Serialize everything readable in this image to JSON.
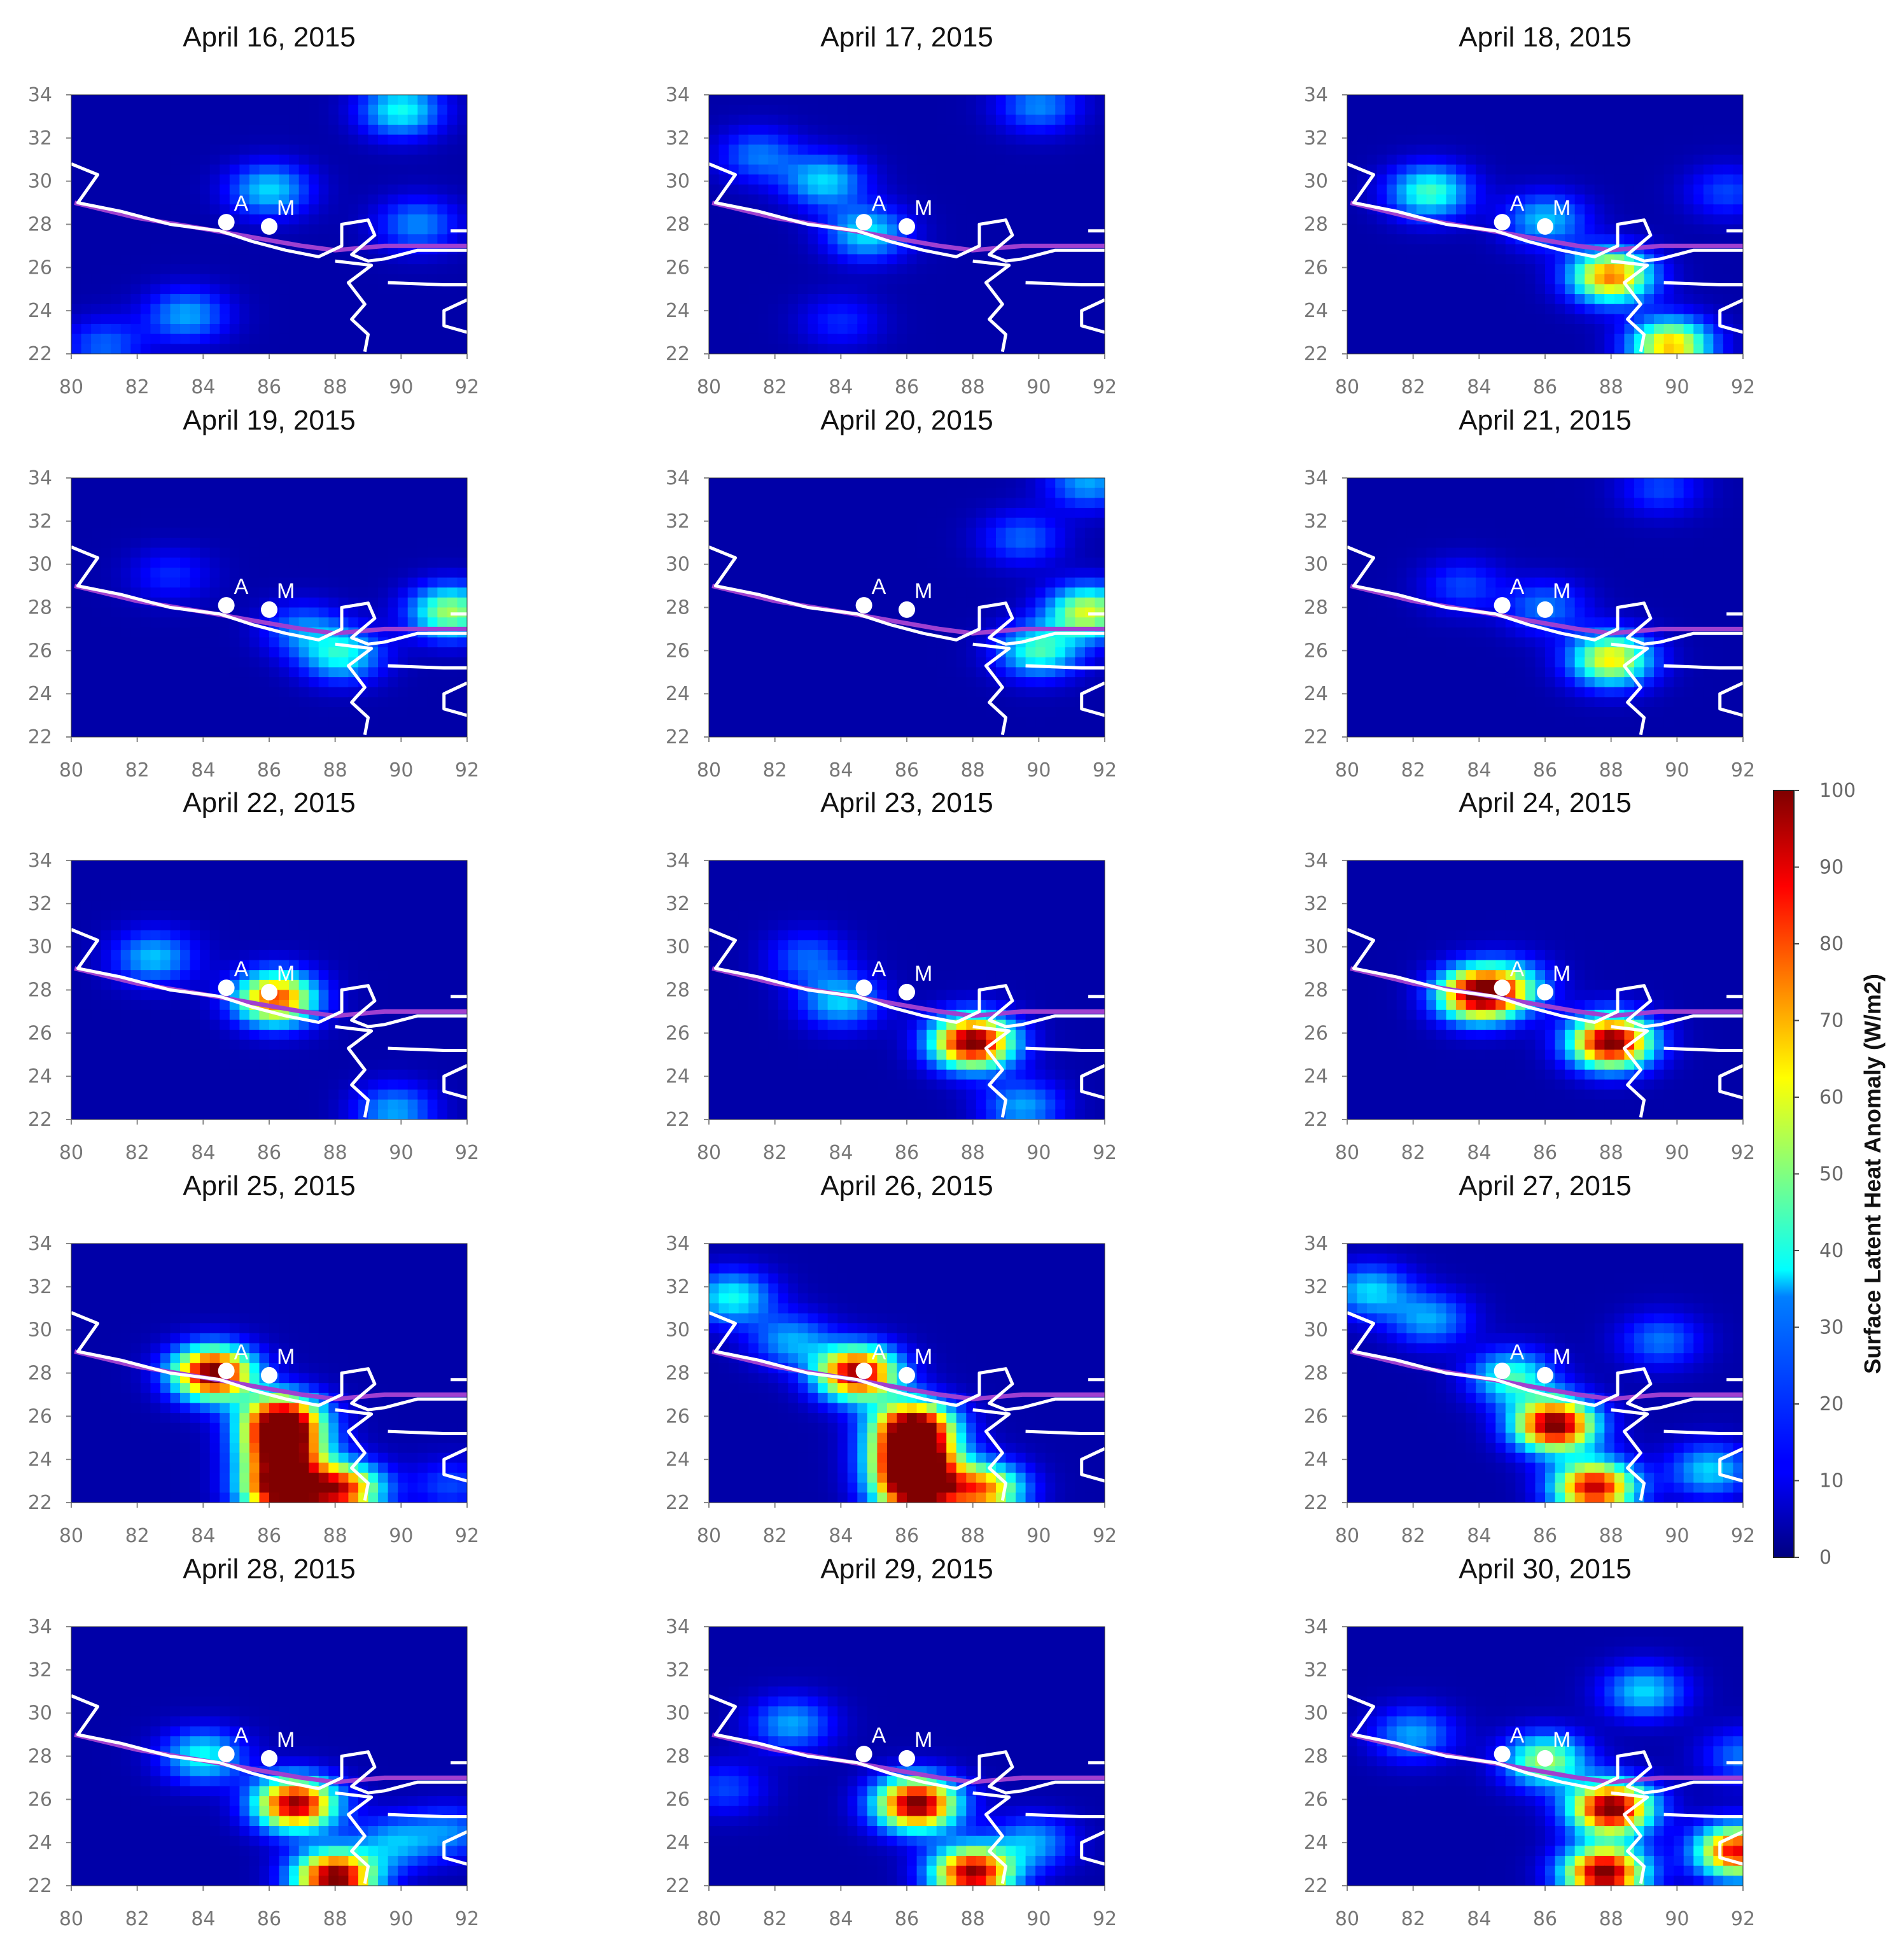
{
  "chart_data": {
    "type": "heatmap",
    "panel_titles": [
      "April 16, 2015",
      "April 17, 2015",
      "April 18, 2015",
      "April 19, 2015",
      "April 20, 2015",
      "April 21, 2015",
      "April 22, 2015",
      "April 23, 2015",
      "April 24, 2015",
      "April 25, 2015",
      "April 26, 2015",
      "April 27, 2015",
      "April 28, 2015",
      "April 29, 2015",
      "April 30, 2015"
    ],
    "x_ticks": [
      80,
      82,
      84,
      86,
      88,
      90,
      92
    ],
    "y_ticks": [
      22,
      24,
      26,
      28,
      30,
      32,
      34
    ],
    "xlim": [
      80,
      92
    ],
    "ylim": [
      22,
      34
    ],
    "markers": [
      {
        "label": "A",
        "lon": 84.7,
        "lat": 28.1
      },
      {
        "label": "M",
        "lon": 86.0,
        "lat": 27.9
      }
    ],
    "colorbar": {
      "label": "Surface Latent Heat Anomaly (W/m2)",
      "min": 0,
      "max": 100,
      "ticks": [
        0,
        10,
        20,
        30,
        40,
        50,
        60,
        70,
        80,
        90,
        100
      ],
      "colormap": "jet"
    },
    "anomaly_hotspots": [
      [
        [
          90.0,
          33.3,
          35
        ],
        [
          86.0,
          29.6,
          30
        ],
        [
          83.5,
          23.8,
          25
        ],
        [
          90.5,
          28.0,
          22
        ],
        [
          81.0,
          22.4,
          18
        ]
      ],
      [
        [
          83.5,
          30.0,
          30
        ],
        [
          84.8,
          27.6,
          32
        ],
        [
          81.5,
          31.2,
          20
        ],
        [
          90.0,
          33.5,
          22
        ],
        [
          84.0,
          23.5,
          12
        ]
      ],
      [
        [
          88.0,
          25.6,
          72
        ],
        [
          89.8,
          22.4,
          65
        ],
        [
          82.5,
          29.5,
          40
        ],
        [
          86.0,
          28.2,
          28
        ],
        [
          91.5,
          29.5,
          15
        ]
      ],
      [
        [
          91.5,
          27.8,
          50
        ],
        [
          88.2,
          25.8,
          35
        ],
        [
          83.0,
          29.5,
          12
        ],
        [
          87.0,
          27.0,
          20
        ]
      ],
      [
        [
          91.5,
          27.8,
          55
        ],
        [
          90.0,
          26.0,
          40
        ],
        [
          91.5,
          33.8,
          25
        ],
        [
          89.5,
          31.2,
          18
        ]
      ],
      [
        [
          88.0,
          25.6,
          60
        ],
        [
          89.5,
          33.5,
          15
        ],
        [
          83.5,
          29.0,
          15
        ],
        [
          86.0,
          28.0,
          20
        ]
      ],
      [
        [
          86.2,
          27.6,
          78
        ],
        [
          82.5,
          29.5,
          28
        ],
        [
          89.8,
          22.4,
          25
        ]
      ],
      [
        [
          88.0,
          25.6,
          100
        ],
        [
          84.0,
          27.5,
          30
        ],
        [
          89.5,
          22.6,
          25
        ],
        [
          83.0,
          29.5,
          18
        ]
      ],
      [
        [
          88.0,
          25.6,
          100
        ],
        [
          84.0,
          27.8,
          95
        ],
        [
          85.0,
          28.2,
          30
        ]
      ],
      [
        [
          84.3,
          28.0,
          100
        ],
        [
          86.4,
          22.6,
          100
        ],
        [
          86.4,
          25.8,
          100
        ],
        [
          86.4,
          24.3,
          85
        ],
        [
          88.2,
          22.6,
          80
        ],
        [
          91.5,
          22.8,
          15
        ]
      ],
      [
        [
          84.5,
          28.0,
          95
        ],
        [
          86.3,
          22.6,
          100
        ],
        [
          86.2,
          25.5,
          100
        ],
        [
          86.2,
          24.0,
          100
        ],
        [
          88.3,
          22.6,
          70
        ],
        [
          80.7,
          31.5,
          35
        ],
        [
          82.5,
          29.5,
          25
        ]
      ],
      [
        [
          86.3,
          25.6,
          100
        ],
        [
          87.5,
          22.7,
          90
        ],
        [
          85.0,
          27.8,
          40
        ],
        [
          80.7,
          31.8,
          30
        ],
        [
          82.5,
          30.5,
          25
        ],
        [
          91.0,
          23.5,
          30
        ],
        [
          89.5,
          29.5,
          20
        ]
      ],
      [
        [
          86.8,
          25.8,
          95
        ],
        [
          88.0,
          22.4,
          100
        ],
        [
          84.0,
          28.0,
          35
        ],
        [
          89.8,
          24.0,
          25
        ],
        [
          91.5,
          24.5,
          20
        ]
      ],
      [
        [
          86.3,
          25.8,
          100
        ],
        [
          88.0,
          22.6,
          95
        ],
        [
          89.8,
          24.0,
          25
        ],
        [
          82.5,
          29.5,
          25
        ],
        [
          80.5,
          26.5,
          15
        ]
      ],
      [
        [
          88.0,
          25.6,
          100
        ],
        [
          87.8,
          22.6,
          100
        ],
        [
          91.8,
          23.6,
          85
        ],
        [
          86.0,
          27.8,
          50
        ],
        [
          89.0,
          31.0,
          30
        ],
        [
          82.0,
          29.0,
          25
        ],
        [
          92.0,
          28.0,
          20
        ]
      ]
    ]
  }
}
